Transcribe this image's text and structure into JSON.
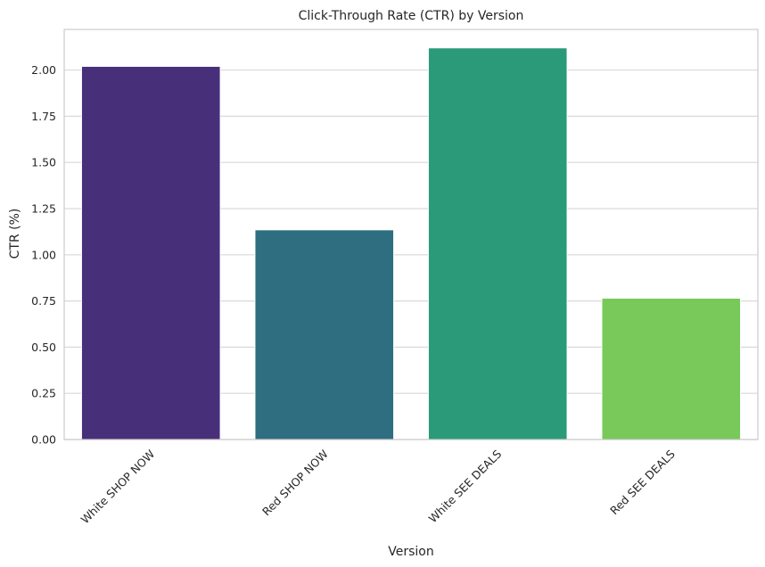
{
  "chart_data": {
    "type": "bar",
    "title": "Click-Through Rate (CTR) by Version",
    "xlabel": "Version",
    "ylabel": "CTR (%)",
    "categories": [
      "White SHOP NOW",
      "Red SHOP NOW",
      "White SEE DEALS",
      "Red SEE DEALS"
    ],
    "values": [
      2.02,
      1.135,
      2.12,
      0.765
    ],
    "colors": [
      "#482f7a",
      "#2e6e80",
      "#2a9a78",
      "#78c95a"
    ],
    "ylim": [
      0,
      2.22
    ],
    "yticks": [
      0.0,
      0.25,
      0.5,
      0.75,
      1.0,
      1.25,
      1.5,
      1.75,
      2.0
    ],
    "ytick_labels": [
      "0.00",
      "0.25",
      "0.50",
      "0.75",
      "1.00",
      "1.25",
      "1.50",
      "1.75",
      "2.00"
    ],
    "grid": true,
    "xtick_rotation": 45
  }
}
